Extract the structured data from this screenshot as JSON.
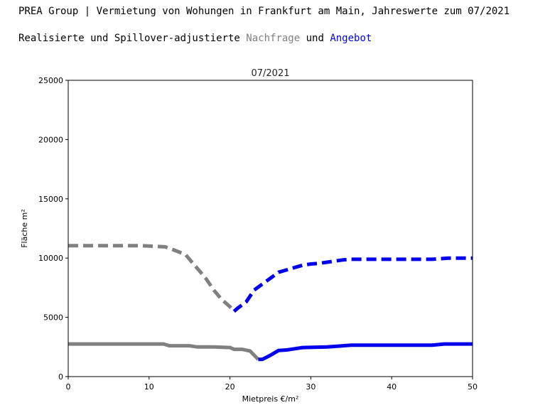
{
  "header": {
    "title": "PREA Group | Vermietung von Wohungen in Frankfurt am Main, Jahreswerte zum 07/2021",
    "subtitle_prefix": "Realisierte und Spillover-adjustierte ",
    "subtitle_demand": "Nachfrage",
    "subtitle_and": " und ",
    "subtitle_supply": "Angebot"
  },
  "colors": {
    "demand": "#808080",
    "supply": "#0000ee",
    "axis": "#000000"
  },
  "chart_data": {
    "type": "line",
    "title": "07/2021",
    "xlabel": "Mietpreis €/m²",
    "ylabel": "Fläche m²",
    "xlim": [
      0,
      50
    ],
    "ylim": [
      0,
      25000
    ],
    "xticks": [
      0,
      10,
      20,
      30,
      40,
      50
    ],
    "yticks": [
      0,
      5000,
      10000,
      15000,
      20000,
      25000
    ],
    "grid": false,
    "legend": "none",
    "series": [
      {
        "key": "demand_adjusted",
        "color": "#808080",
        "style": "dashed",
        "points": [
          [
            0,
            11050
          ],
          [
            3,
            11050
          ],
          [
            6,
            11050
          ],
          [
            9,
            11050
          ],
          [
            12,
            10950
          ],
          [
            13,
            10700
          ],
          [
            14.5,
            10300
          ],
          [
            15,
            9900
          ],
          [
            16,
            9100
          ],
          [
            17,
            8300
          ],
          [
            18,
            7300
          ],
          [
            19,
            6500
          ],
          [
            20,
            5900
          ],
          [
            20.5,
            5500
          ]
        ]
      },
      {
        "key": "supply_adjusted",
        "color": "#0000ee",
        "style": "dashed",
        "points": [
          [
            20.5,
            5500
          ],
          [
            21,
            5800
          ],
          [
            22,
            6300
          ],
          [
            23,
            7300
          ],
          [
            24,
            7800
          ],
          [
            25,
            8300
          ],
          [
            26,
            8800
          ],
          [
            27,
            9000
          ],
          [
            28,
            9200
          ],
          [
            29,
            9400
          ],
          [
            30,
            9500
          ],
          [
            31,
            9550
          ],
          [
            32,
            9650
          ],
          [
            33,
            9750
          ],
          [
            34,
            9850
          ],
          [
            35,
            9900
          ],
          [
            40,
            9900
          ],
          [
            45,
            9900
          ],
          [
            47,
            10000
          ],
          [
            50,
            10000
          ]
        ]
      },
      {
        "key": "demand_realized",
        "color": "#808080",
        "style": "solid",
        "points": [
          [
            0,
            2750
          ],
          [
            6,
            2750
          ],
          [
            11.8,
            2750
          ],
          [
            12.5,
            2600
          ],
          [
            15,
            2600
          ],
          [
            16,
            2500
          ],
          [
            18,
            2500
          ],
          [
            20,
            2450
          ],
          [
            20.5,
            2300
          ],
          [
            21.5,
            2300
          ],
          [
            22.5,
            2150
          ],
          [
            23.5,
            1450
          ]
        ]
      },
      {
        "key": "supply_realized",
        "color": "#0000ee",
        "style": "solid",
        "points": [
          [
            23.5,
            1450
          ],
          [
            24,
            1450
          ],
          [
            25,
            1800
          ],
          [
            26,
            2200
          ],
          [
            27,
            2250
          ],
          [
            28,
            2350
          ],
          [
            29,
            2450
          ],
          [
            32,
            2500
          ],
          [
            34,
            2600
          ],
          [
            35,
            2650
          ],
          [
            40,
            2650
          ],
          [
            45,
            2650
          ],
          [
            46.5,
            2750
          ],
          [
            50,
            2750
          ]
        ]
      }
    ]
  }
}
